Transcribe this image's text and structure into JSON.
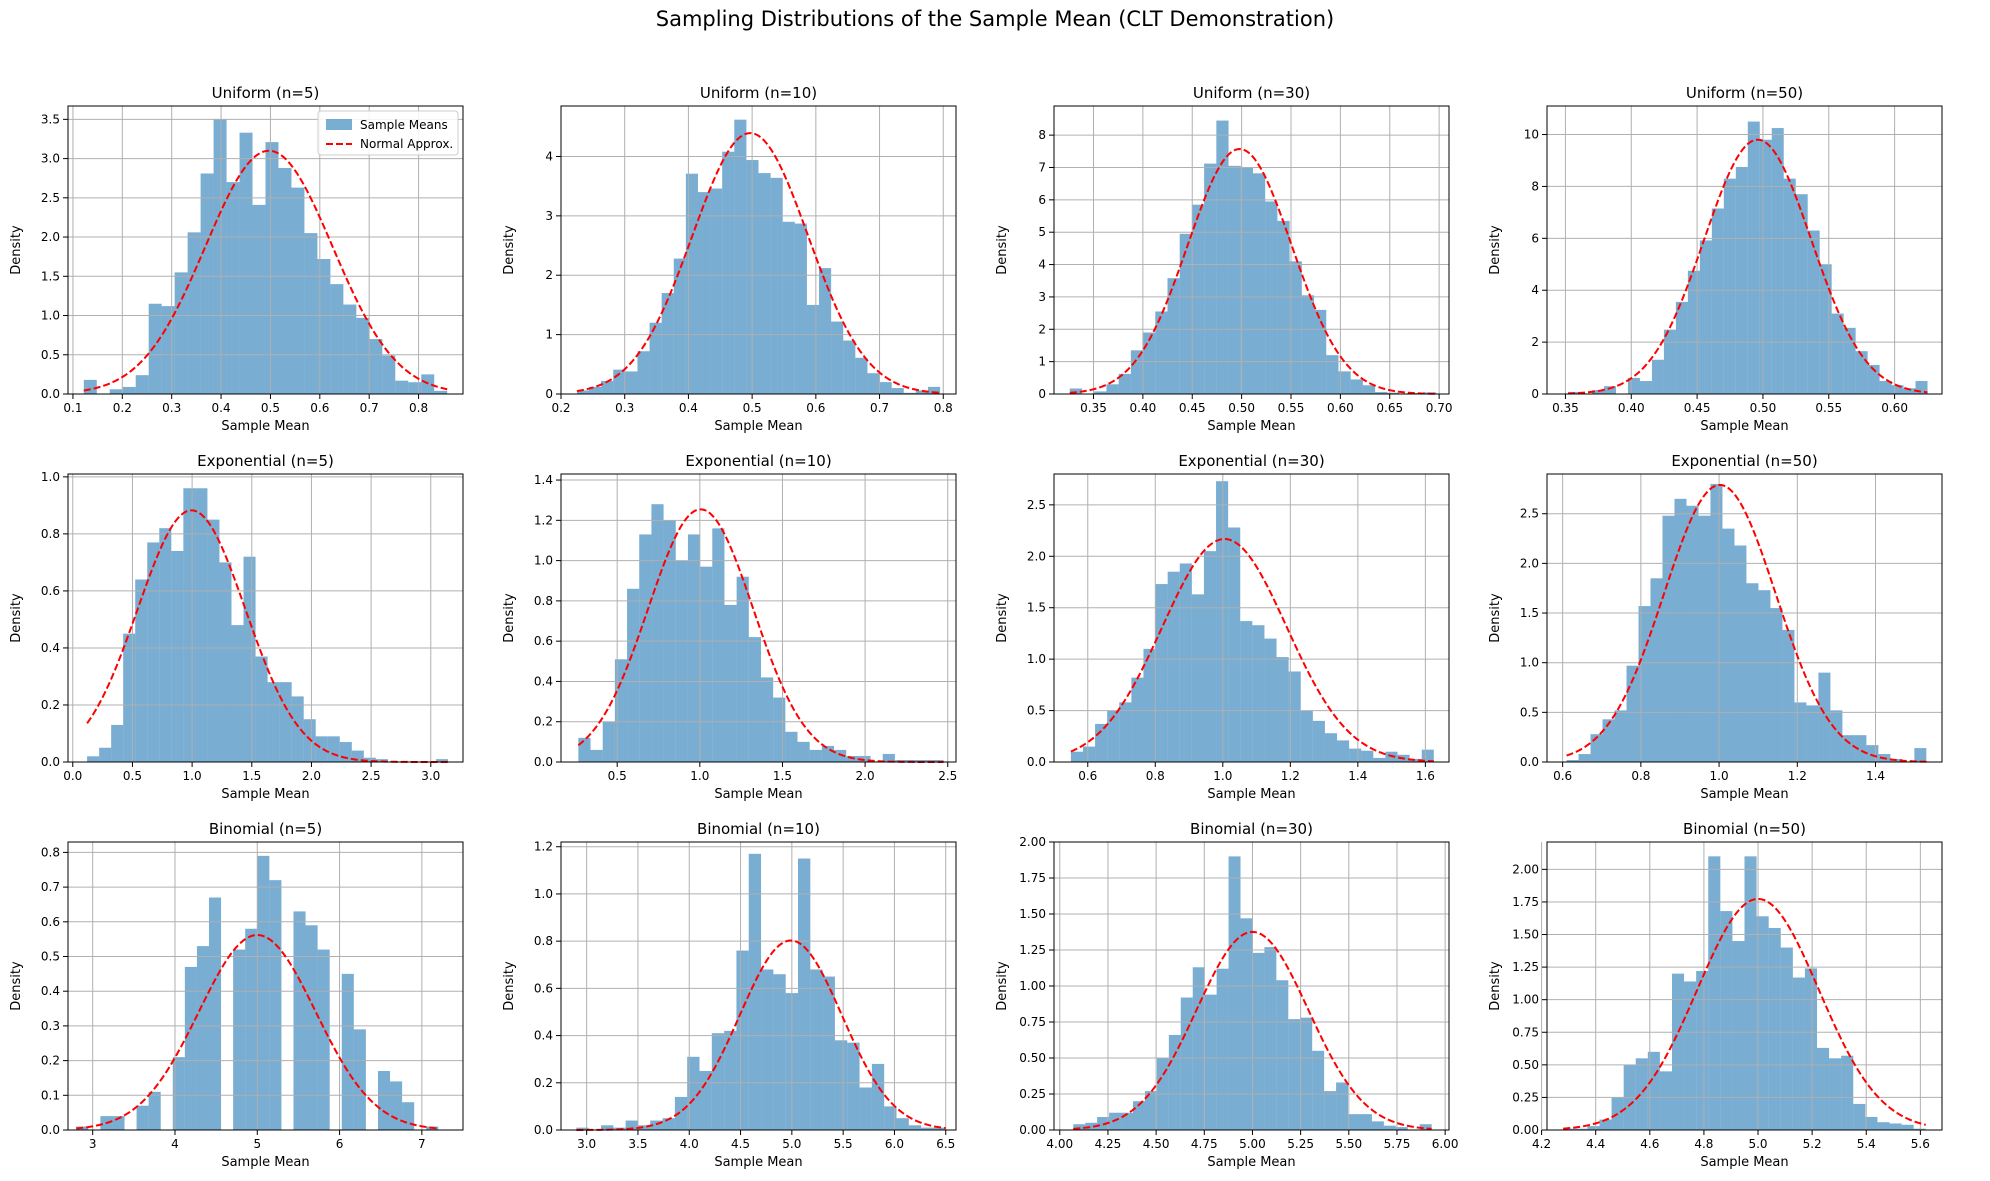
{
  "figure": {
    "suptitle": "Sampling Distributions of the Sample Mean (CLT Demonstration)",
    "legend": {
      "placement": "top-right",
      "first_panel_only": true,
      "hist_label": "Sample Means",
      "curve_label": "Normal Approx."
    },
    "colors": {
      "bar": "#1f77b4",
      "bar_opacity": 0.6,
      "curve": "#ff0000",
      "grid": "#b0b0b0"
    }
  },
  "chart_data": [
    {
      "type": "bar",
      "title": "Uniform (n=5)",
      "xlabel": "Sample Mean",
      "ylabel": "Density",
      "grid": true,
      "xlim": [
        0.09,
        0.89
      ],
      "ylim": [
        0,
        3.67
      ],
      "xticks": [
        "0.1",
        "0.2",
        "0.3",
        "0.4",
        "0.5",
        "0.6",
        "0.7",
        "0.8"
      ],
      "xtick_values": [
        0.1,
        0.2,
        0.3,
        0.4,
        0.5,
        0.6,
        0.7,
        0.8
      ],
      "yticks": [
        "0.0",
        "0.5",
        "1.0",
        "1.5",
        "2.0",
        "2.5",
        "3.0",
        "3.5"
      ],
      "ytick_values": [
        0,
        0.5,
        1.0,
        1.5,
        2.0,
        2.5,
        3.0,
        3.5
      ],
      "bins": {
        "start": 0.122,
        "end": 0.858
      },
      "values": [
        0.18,
        0.0,
        0.06,
        0.09,
        0.24,
        1.15,
        1.12,
        1.55,
        2.06,
        2.81,
        3.5,
        2.7,
        3.33,
        2.41,
        3.21,
        2.88,
        2.63,
        2.05,
        1.72,
        1.4,
        1.14,
        0.97,
        0.7,
        0.49,
        0.17,
        0.15,
        0.25,
        0.04
      ],
      "curve": {
        "mu": 0.497,
        "sigma": 0.1287
      },
      "legend": [
        "Sample Means",
        "Normal Approx."
      ]
    },
    {
      "type": "bar",
      "title": "Uniform (n=10)",
      "xlabel": "Sample Mean",
      "ylabel": "Density",
      "grid": true,
      "xlim": [
        0.2,
        0.82
      ],
      "ylim": [
        0,
        4.85
      ],
      "xticks": [
        "0.2",
        "0.3",
        "0.4",
        "0.5",
        "0.6",
        "0.7",
        "0.8"
      ],
      "xtick_values": [
        0.2,
        0.3,
        0.4,
        0.5,
        0.6,
        0.7,
        0.8
      ],
      "yticks": [
        "0",
        "1",
        "2",
        "3",
        "4"
      ],
      "ytick_values": [
        0,
        1,
        2,
        3,
        4
      ],
      "bins": {
        "start": 0.225,
        "end": 0.795
      },
      "values": [
        0.06,
        0.12,
        0.22,
        0.41,
        0.38,
        0.72,
        1.2,
        1.7,
        2.28,
        3.71,
        3.4,
        3.46,
        4.08,
        4.62,
        3.94,
        3.72,
        3.64,
        2.9,
        2.87,
        1.5,
        2.12,
        1.22,
        0.9,
        0.61,
        0.35,
        0.2,
        0.1,
        0.02,
        0.06,
        0.12
      ],
      "curve": {
        "mu": 0.497,
        "sigma": 0.0908
      }
    },
    {
      "type": "bar",
      "title": "Uniform (n=30)",
      "xlabel": "Sample Mean",
      "ylabel": "Density",
      "grid": true,
      "xlim": [
        0.31,
        0.71
      ],
      "ylim": [
        0,
        8.9
      ],
      "xticks": [
        "0.35",
        "0.40",
        "0.45",
        "0.50",
        "0.55",
        "0.60",
        "0.65",
        "0.70"
      ],
      "xtick_values": [
        0.35,
        0.4,
        0.45,
        0.5,
        0.55,
        0.6,
        0.65,
        0.7
      ],
      "yticks": [
        "0",
        "1",
        "2",
        "3",
        "4",
        "5",
        "6",
        "7",
        "8"
      ],
      "ytick_values": [
        0,
        1,
        2,
        3,
        4,
        5,
        6,
        7,
        8
      ],
      "bins": {
        "start": 0.326,
        "end": 0.697
      },
      "values": [
        0.17,
        0.0,
        0.08,
        0.3,
        0.62,
        1.35,
        1.9,
        2.55,
        3.58,
        4.95,
        5.85,
        7.12,
        8.45,
        7.05,
        7.0,
        6.82,
        5.95,
        5.35,
        4.1,
        3.05,
        2.6,
        1.2,
        0.7,
        0.45,
        0.27,
        0.06,
        0.04,
        0.0,
        0.03,
        0.05
      ],
      "curve": {
        "mu": 0.498,
        "sigma": 0.0527
      }
    },
    {
      "type": "bar",
      "title": "Uniform (n=50)",
      "xlabel": "Sample Mean",
      "ylabel": "Density",
      "grid": true,
      "xlim": [
        0.336,
        0.636
      ],
      "ylim": [
        0,
        11.1
      ],
      "xticks": [
        "0.35",
        "0.40",
        "0.45",
        "0.50",
        "0.55",
        "0.60"
      ],
      "xtick_values": [
        0.35,
        0.4,
        0.45,
        0.5,
        0.55,
        0.6
      ],
      "yticks": [
        "0",
        "2",
        "4",
        "6",
        "8",
        "10"
      ],
      "ytick_values": [
        0,
        2,
        4,
        6,
        8,
        10
      ],
      "bins": {
        "start": 0.352,
        "end": 0.625
      },
      "values": [
        0.08,
        0.0,
        0.15,
        0.3,
        0.0,
        0.62,
        0.5,
        1.32,
        2.48,
        3.55,
        4.75,
        5.92,
        7.15,
        8.3,
        8.75,
        10.5,
        9.8,
        10.25,
        8.3,
        7.7,
        6.3,
        5.0,
        3.1,
        2.55,
        1.65,
        1.12,
        0.5,
        0.34,
        0.22,
        0.5
      ],
      "curve": {
        "mu": 0.496,
        "sigma": 0.0407
      }
    },
    {
      "type": "bar",
      "title": "Exponential (n=5)",
      "xlabel": "Sample Mean",
      "ylabel": "Density",
      "grid": true,
      "xlim": [
        -0.04,
        3.27
      ],
      "ylim": [
        0,
        1.01
      ],
      "xticks": [
        "0.0",
        "0.5",
        "1.0",
        "1.5",
        "2.0",
        "2.5",
        "3.0"
      ],
      "xtick_values": [
        0,
        0.5,
        1.0,
        1.5,
        2.0,
        2.5,
        3.0
      ],
      "yticks": [
        "0.0",
        "0.2",
        "0.4",
        "0.6",
        "0.8",
        "1.0"
      ],
      "ytick_values": [
        0,
        0.2,
        0.4,
        0.6,
        0.8,
        1.0
      ],
      "bins": {
        "start": 0.12,
        "end": 3.145
      },
      "values": [
        0.02,
        0.05,
        0.13,
        0.45,
        0.64,
        0.77,
        0.82,
        0.74,
        0.96,
        0.96,
        0.85,
        0.7,
        0.48,
        0.72,
        0.37,
        0.28,
        0.28,
        0.23,
        0.15,
        0.09,
        0.09,
        0.07,
        0.04,
        0.015,
        0.01,
        0.0,
        0.0,
        0.0,
        0.0,
        0.01
      ],
      "curve": {
        "mu": 0.995,
        "sigma": 0.452
      }
    },
    {
      "type": "bar",
      "title": "Exponential (n=10)",
      "xlabel": "Sample Mean",
      "ylabel": "Density",
      "grid": true,
      "xlim": [
        0.16,
        2.55
      ],
      "ylim": [
        0,
        1.43
      ],
      "xticks": [
        "0.5",
        "1.0",
        "1.5",
        "2.0",
        "2.5"
      ],
      "xtick_values": [
        0.5,
        1.0,
        1.5,
        2.0,
        2.5
      ],
      "yticks": [
        "0.0",
        "0.2",
        "0.4",
        "0.6",
        "0.8",
        "1.0",
        "1.2",
        "1.4"
      ],
      "ytick_values": [
        0,
        0.2,
        0.4,
        0.6,
        0.8,
        1.0,
        1.2,
        1.4
      ],
      "bins": {
        "start": 0.265,
        "end": 2.475
      },
      "values": [
        0.12,
        0.06,
        0.2,
        0.51,
        0.86,
        1.13,
        1.28,
        1.2,
        1.0,
        1.13,
        0.97,
        1.16,
        0.78,
        0.92,
        0.62,
        0.42,
        0.32,
        0.15,
        0.1,
        0.06,
        0.08,
        0.06,
        0.03,
        0.03,
        0.0,
        0.04,
        0.01,
        0.01,
        0.01,
        0.01
      ],
      "curve": {
        "mu": 1.005,
        "sigma": 0.318
      }
    },
    {
      "type": "bar",
      "title": "Exponential (n=30)",
      "xlabel": "Sample Mean",
      "ylabel": "Density",
      "grid": true,
      "xlim": [
        0.5,
        1.67
      ],
      "ylim": [
        0,
        2.8
      ],
      "xticks": [
        "0.6",
        "0.8",
        "1.0",
        "1.2",
        "1.4",
        "1.6"
      ],
      "xtick_values": [
        0.6,
        0.8,
        1.0,
        1.2,
        1.4,
        1.6
      ],
      "yticks": [
        "0.0",
        "0.5",
        "1.0",
        "1.5",
        "2.0",
        "2.5"
      ],
      "ytick_values": [
        0,
        0.5,
        1.0,
        1.5,
        2.0,
        2.5
      ],
      "bins": {
        "start": 0.55,
        "end": 1.625
      },
      "values": [
        0.1,
        0.15,
        0.37,
        0.5,
        0.58,
        0.82,
        1.1,
        1.73,
        1.85,
        1.93,
        1.63,
        2.05,
        2.73,
        2.28,
        1.37,
        1.33,
        1.2,
        1.02,
        0.88,
        0.5,
        0.4,
        0.28,
        0.21,
        0.13,
        0.11,
        0.04,
        0.1,
        0.07,
        0.03,
        0.12
      ],
      "curve": {
        "mu": 1.005,
        "sigma": 0.184
      }
    },
    {
      "type": "bar",
      "title": "Exponential (n=50)",
      "xlabel": "Sample Mean",
      "ylabel": "Density",
      "grid": true,
      "xlim": [
        0.56,
        1.57
      ],
      "ylim": [
        0,
        2.9
      ],
      "xticks": [
        "0.6",
        "0.8",
        "1.0",
        "1.2",
        "1.4"
      ],
      "xtick_values": [
        0.6,
        0.8,
        1.0,
        1.2,
        1.4
      ],
      "yticks": [
        "0.0",
        "0.5",
        "1.0",
        "1.5",
        "2.0",
        "2.5"
      ],
      "ytick_values": [
        0,
        0.5,
        1.0,
        1.5,
        2.0,
        2.5
      ],
      "bins": {
        "start": 0.61,
        "end": 1.53
      },
      "values": [
        0.02,
        0.08,
        0.28,
        0.43,
        0.52,
        0.97,
        1.57,
        1.85,
        2.48,
        2.65,
        2.58,
        2.48,
        2.8,
        2.35,
        2.18,
        1.8,
        1.73,
        1.55,
        1.33,
        0.6,
        0.57,
        0.9,
        0.52,
        0.27,
        0.27,
        0.17,
        0.08,
        0.03,
        0.0,
        0.14
      ],
      "curve": {
        "mu": 1.002,
        "sigma": 0.143
      }
    },
    {
      "type": "bar",
      "title": "Binomial (n=5)",
      "xlabel": "Sample Mean",
      "ylabel": "Density",
      "grid": true,
      "xlim": [
        2.7,
        7.5
      ],
      "ylim": [
        0,
        0.83
      ],
      "xticks": [
        "3",
        "4",
        "5",
        "6",
        "7"
      ],
      "xtick_values": [
        3,
        4,
        5,
        6,
        7
      ],
      "yticks": [
        "0.0",
        "0.1",
        "0.2",
        "0.3",
        "0.4",
        "0.5",
        "0.6",
        "0.7",
        "0.8"
      ],
      "ytick_values": [
        0,
        0.1,
        0.2,
        0.3,
        0.4,
        0.5,
        0.6,
        0.7,
        0.8
      ],
      "bins": {
        "start": 2.8,
        "end": 7.2
      },
      "values": [
        0.01,
        0.0,
        0.04,
        0.04,
        0.0,
        0.07,
        0.11,
        0.0,
        0.21,
        0.47,
        0.53,
        0.67,
        0.0,
        0.52,
        0.58,
        0.79,
        0.72,
        0.0,
        0.63,
        0.59,
        0.52,
        0.0,
        0.45,
        0.29,
        0.0,
        0.17,
        0.14,
        0.08,
        0.0,
        0.01
      ],
      "curve": {
        "mu": 5.0,
        "sigma": 0.71
      }
    },
    {
      "type": "bar",
      "title": "Binomial (n=10)",
      "xlabel": "Sample Mean",
      "ylabel": "Density",
      "grid": true,
      "xlim": [
        2.75,
        6.6
      ],
      "ylim": [
        0,
        1.22
      ],
      "xticks": [
        "3.0",
        "3.5",
        "4.0",
        "4.5",
        "5.0",
        "5.5",
        "6.0",
        "6.5"
      ],
      "xtick_values": [
        3.0,
        3.5,
        4.0,
        4.5,
        5.0,
        5.5,
        6.0,
        6.5
      ],
      "yticks": [
        "0.0",
        "0.2",
        "0.4",
        "0.6",
        "0.8",
        "1.0",
        "1.2"
      ],
      "ytick_values": [
        0,
        0.2,
        0.4,
        0.6,
        0.8,
        1.0,
        1.2
      ],
      "bins": {
        "start": 2.9,
        "end": 6.5
      },
      "values": [
        0.01,
        0.0,
        0.02,
        0.01,
        0.04,
        0.02,
        0.04,
        0.05,
        0.14,
        0.31,
        0.25,
        0.41,
        0.42,
        0.76,
        1.17,
        0.68,
        0.66,
        0.58,
        1.15,
        0.68,
        0.65,
        0.38,
        0.37,
        0.18,
        0.28,
        0.1,
        0.05,
        0.02,
        0.01,
        0.01
      ],
      "curve": {
        "mu": 4.99,
        "sigma": 0.497
      }
    },
    {
      "type": "bar",
      "title": "Binomial (n=30)",
      "xlabel": "Sample Mean",
      "ylabel": "Density",
      "grid": true,
      "xlim": [
        3.97,
        6.02
      ],
      "ylim": [
        0,
        2.0
      ],
      "xticks": [
        "4.00",
        "4.25",
        "4.50",
        "4.75",
        "5.00",
        "5.25",
        "5.50",
        "5.75",
        "6.00"
      ],
      "xtick_values": [
        4.0,
        4.25,
        4.5,
        4.75,
        5.0,
        5.25,
        5.5,
        5.75,
        6.0
      ],
      "yticks": [
        "0.00",
        "0.25",
        "0.50",
        "0.75",
        "1.00",
        "1.25",
        "1.50",
        "1.75",
        "2.00"
      ],
      "ytick_values": [
        0,
        0.25,
        0.5,
        0.75,
        1.0,
        1.25,
        1.5,
        1.75,
        2.0
      ],
      "bins": {
        "start": 4.07,
        "end": 5.93
      },
      "values": [
        0.04,
        0.05,
        0.09,
        0.12,
        0.12,
        0.2,
        0.27,
        0.5,
        0.66,
        0.92,
        1.13,
        0.94,
        1.12,
        1.9,
        1.47,
        1.23,
        1.27,
        1.04,
        0.77,
        0.78,
        0.55,
        0.27,
        0.33,
        0.11,
        0.11,
        0.06,
        0.03,
        0.02,
        0.0,
        0.04
      ],
      "curve": {
        "mu": 5.0,
        "sigma": 0.29
      }
    },
    {
      "type": "bar",
      "title": "Binomial (n=50)",
      "xlabel": "Sample Mean",
      "ylabel": "Density",
      "grid": true,
      "xlim": [
        4.22,
        5.68
      ],
      "ylim": [
        0,
        2.21
      ],
      "xticks": [
        "4.2",
        "4.4",
        "4.6",
        "4.8",
        "5.0",
        "5.2",
        "5.4",
        "5.6"
      ],
      "xtick_values": [
        4.2,
        4.4,
        4.6,
        4.8,
        5.0,
        5.2,
        5.4,
        5.6
      ],
      "yticks": [
        "0.00",
        "0.25",
        "0.50",
        "0.75",
        "1.00",
        "1.25",
        "1.50",
        "1.75",
        "2.00"
      ],
      "ytick_values": [
        0,
        0.25,
        0.5,
        0.75,
        1.0,
        1.25,
        1.5,
        1.75,
        2.0
      ],
      "bins": {
        "start": 4.28,
        "end": 5.62
      },
      "values": [
        0.01,
        0.01,
        0.03,
        0.08,
        0.25,
        0.5,
        0.55,
        0.6,
        0.45,
        1.2,
        1.14,
        1.22,
        2.1,
        1.68,
        1.45,
        2.1,
        1.64,
        1.55,
        1.4,
        1.17,
        1.24,
        0.63,
        0.55,
        0.57,
        0.2,
        0.1,
        0.06,
        0.05,
        0.04,
        0.01
      ],
      "curve": {
        "mu": 5.0,
        "sigma": 0.225
      }
    }
  ]
}
